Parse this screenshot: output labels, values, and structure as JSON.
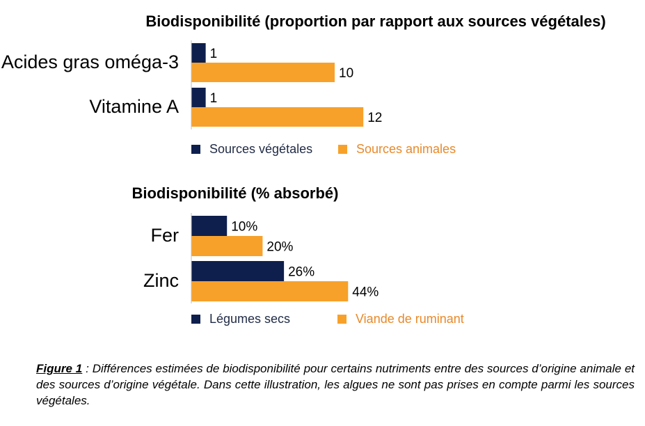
{
  "colors": {
    "navy": "#0e1f4d",
    "orange": "#f7a12a"
  },
  "chart_data": [
    {
      "type": "bar",
      "orientation": "horizontal",
      "title": "Biodisponibilité (proportion par rapport aux sources végétales)",
      "categories": [
        "Acides gras oméga-3",
        "Vitamine A"
      ],
      "series": [
        {
          "name": "Sources végétales",
          "values": [
            1,
            1
          ],
          "labels": [
            "1",
            "1"
          ],
          "color": "#0e1f4d"
        },
        {
          "name": "Sources animales",
          "values": [
            10,
            12
          ],
          "labels": [
            "10",
            "12"
          ],
          "color": "#f7a12a"
        }
      ],
      "xlim": [
        0,
        12
      ],
      "grid": false,
      "legend": "bottom"
    },
    {
      "type": "bar",
      "orientation": "horizontal",
      "title": "Biodisponibilité (% absorbé)",
      "categories": [
        "Fer",
        "Zinc"
      ],
      "series": [
        {
          "name": "Légumes secs",
          "values": [
            10,
            26
          ],
          "labels": [
            "10%",
            "26%"
          ],
          "color": "#0e1f4d"
        },
        {
          "name": "Viande de ruminant",
          "values": [
            20,
            44
          ],
          "labels": [
            "20%",
            "44%"
          ],
          "color": "#f7a12a"
        }
      ],
      "xlim": [
        0,
        44
      ],
      "grid": false,
      "legend": "bottom"
    }
  ],
  "caption": {
    "figure_label": "Figure 1",
    "text": " : Différences estimées de biodisponibilité pour certains nutriments entre des sources d’origine animale et des sources d’origine végétale. Dans cette illustration, les algues ne sont pas prises en compte parmi les sources végétales."
  }
}
